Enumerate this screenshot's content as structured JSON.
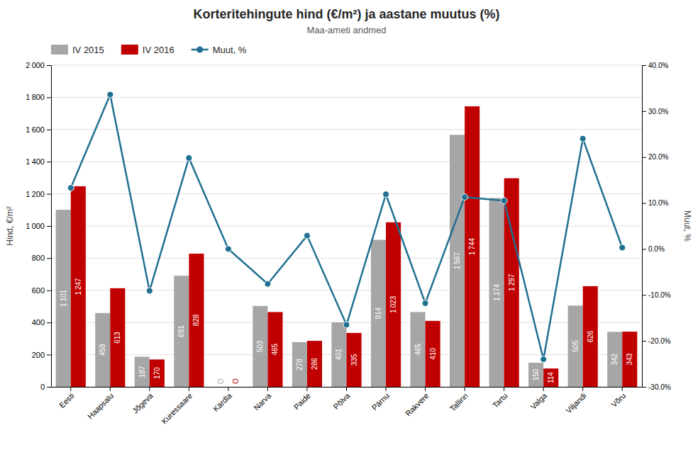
{
  "chart_data": {
    "type": "bar",
    "title": "Korteritehingute hind (€/m²) ja aastane muutus (%)",
    "subtitle": "Maa-ameti andmed",
    "categories": [
      "Eesti",
      "Haapsalu",
      "Jõgeva",
      "Kuressaare",
      "Kärdla",
      "Narva",
      "Paide",
      "Põlva",
      "Pärnu",
      "Rakvere",
      "Tallinn",
      "Tartu",
      "Valga",
      "Viljandi",
      "Võru"
    ],
    "series": [
      {
        "name": "IV 2015",
        "type": "bar",
        "color": "#a6a6a6",
        "values": [
          1101,
          459,
          187,
          691,
          0,
          503,
          278,
          401,
          914,
          465,
          1567,
          1174,
          150,
          505,
          342
        ],
        "value_labels": [
          "1 101",
          "459",
          "187",
          "691",
          "O",
          "503",
          "278",
          "401",
          "914",
          "465",
          "1 567",
          "1 174",
          "150",
          "505",
          "342"
        ],
        "data_labels": true
      },
      {
        "name": "IV 2016",
        "type": "bar",
        "color": "#c00000",
        "values": [
          1247,
          613,
          170,
          828,
          0,
          465,
          286,
          335,
          1023,
          410,
          1744,
          1297,
          114,
          626,
          343
        ],
        "value_labels": [
          "1 247",
          "613",
          "170",
          "828",
          "O",
          "465",
          "286",
          "335",
          "1 023",
          "410",
          "1 744",
          "1 297",
          "114",
          "626",
          "343"
        ],
        "data_labels": true
      },
      {
        "name": "Muut, %",
        "type": "line",
        "color": "#1f7091",
        "marker": "circle",
        "axis": "y2",
        "values": [
          13.3,
          33.6,
          -9.1,
          19.8,
          0.0,
          -7.6,
          2.9,
          -16.5,
          11.9,
          -11.8,
          11.3,
          10.5,
          -24.0,
          24.0,
          0.3
        ]
      }
    ],
    "ylabel": "Hind, €/m²",
    "y2label": "Muut, %",
    "ylim": [
      0,
      2000
    ],
    "yticks": [
      0,
      200,
      400,
      600,
      800,
      {
        "value": 1000,
        "label": "1 000"
      },
      {
        "value": 1200,
        "label": "1 200"
      },
      {
        "value": 1400,
        "label": "1 400"
      },
      {
        "value": 1600,
        "label": "1 600"
      },
      {
        "value": 1800,
        "label": "1 800"
      },
      {
        "value": 2000,
        "label": "2 000"
      }
    ],
    "y2lim": [
      -30.0,
      40.0
    ],
    "y2ticks": [
      {
        "value": -30.0,
        "label": "-30.0%"
      },
      {
        "value": -20.0,
        "label": "-20.0%"
      },
      {
        "value": -10.0,
        "label": "-10.0%"
      },
      {
        "value": 0.0,
        "label": "0.0%"
      },
      {
        "value": 10.0,
        "label": "10.0%"
      },
      {
        "value": 20.0,
        "label": "20.0%"
      },
      {
        "value": 30.0,
        "label": "30.0%"
      },
      {
        "value": 40.0,
        "label": "40.0%"
      }
    ],
    "grid": true,
    "legend": "upper left"
  }
}
